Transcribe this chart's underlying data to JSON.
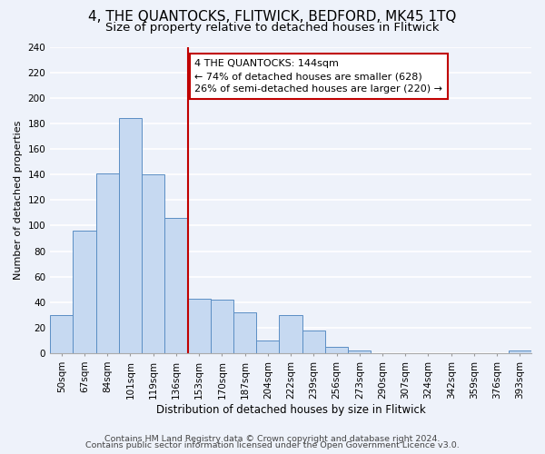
{
  "title": "4, THE QUANTOCKS, FLITWICK, BEDFORD, MK45 1TQ",
  "subtitle": "Size of property relative to detached houses in Flitwick",
  "xlabel": "Distribution of detached houses by size in Flitwick",
  "ylabel": "Number of detached properties",
  "bar_labels": [
    "50sqm",
    "67sqm",
    "84sqm",
    "101sqm",
    "119sqm",
    "136sqm",
    "153sqm",
    "170sqm",
    "187sqm",
    "204sqm",
    "222sqm",
    "239sqm",
    "256sqm",
    "273sqm",
    "290sqm",
    "307sqm",
    "324sqm",
    "342sqm",
    "359sqm",
    "376sqm",
    "393sqm"
  ],
  "bar_values": [
    30,
    96,
    141,
    184,
    140,
    106,
    43,
    42,
    32,
    10,
    30,
    18,
    5,
    2,
    0,
    0,
    0,
    0,
    0,
    0,
    2
  ],
  "bar_color": "#c6d9f1",
  "bar_edge_color": "#5b8ec4",
  "vline_x": 6,
  "vline_color": "#c00000",
  "annotation_line1": "4 THE QUANTOCKS: 144sqm",
  "annotation_line2": "← 74% of detached houses are smaller (628)",
  "annotation_line3": "26% of semi-detached houses are larger (220) →",
  "annotation_box_edge": "#c00000",
  "annotation_box_face": "white",
  "ylim": [
    0,
    240
  ],
  "yticks": [
    0,
    20,
    40,
    60,
    80,
    100,
    120,
    140,
    160,
    180,
    200,
    220,
    240
  ],
  "footer1": "Contains HM Land Registry data © Crown copyright and database right 2024.",
  "footer2": "Contains public sector information licensed under the Open Government Licence v3.0.",
  "bg_color": "#eef2fa",
  "grid_color": "white",
  "title_fontsize": 11,
  "subtitle_fontsize": 9.5,
  "ylabel_fontsize": 8,
  "xlabel_fontsize": 8.5,
  "tick_fontsize": 7.5,
  "ann_fontsize": 8,
  "footer_fontsize": 6.8
}
